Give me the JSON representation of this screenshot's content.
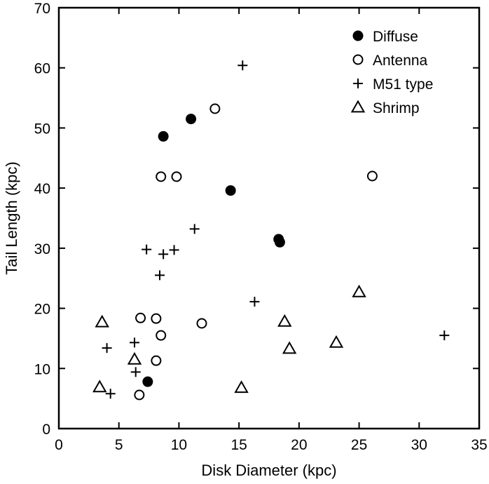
{
  "chart_data": {
    "type": "scatter",
    "xlabel": "Disk Diameter (kpc)",
    "ylabel": "Tail Length (kpc)",
    "xlim": [
      0,
      35
    ],
    "ylim": [
      0,
      70
    ],
    "xticks": [
      0,
      5,
      10,
      15,
      20,
      25,
      30,
      35
    ],
    "yticks": [
      0,
      10,
      20,
      30,
      40,
      50,
      60,
      70
    ],
    "grid": false,
    "legend_position": "top-right",
    "series": [
      {
        "name": "Diffuse",
        "marker": "filled-circle",
        "points": [
          [
            8.7,
            48.6
          ],
          [
            11.0,
            51.5
          ],
          [
            14.3,
            39.6
          ],
          [
            18.3,
            31.5
          ],
          [
            18.4,
            31.0
          ],
          [
            7.4,
            7.8
          ]
        ]
      },
      {
        "name": "Antenna",
        "marker": "open-circle",
        "points": [
          [
            13.0,
            53.2
          ],
          [
            8.5,
            41.9
          ],
          [
            9.8,
            41.9
          ],
          [
            26.1,
            42.0
          ],
          [
            6.8,
            18.4
          ],
          [
            8.1,
            18.3
          ],
          [
            11.9,
            17.5
          ],
          [
            8.5,
            15.5
          ],
          [
            8.1,
            11.3
          ],
          [
            6.7,
            5.6
          ]
        ]
      },
      {
        "name": "M51 type",
        "marker": "plus",
        "points": [
          [
            15.3,
            60.4
          ],
          [
            11.3,
            33.2
          ],
          [
            7.3,
            29.8
          ],
          [
            8.7,
            29.0
          ],
          [
            9.6,
            29.7
          ],
          [
            8.4,
            25.5
          ],
          [
            16.3,
            21.1
          ],
          [
            32.1,
            15.5
          ],
          [
            4.0,
            13.4
          ],
          [
            6.3,
            14.3
          ],
          [
            6.4,
            9.4
          ],
          [
            4.3,
            5.8
          ]
        ]
      },
      {
        "name": "Shrimp",
        "marker": "open-triangle",
        "points": [
          [
            3.6,
            17.7
          ],
          [
            25.0,
            22.7
          ],
          [
            18.8,
            17.8
          ],
          [
            19.2,
            13.3
          ],
          [
            23.1,
            14.3
          ],
          [
            6.3,
            11.5
          ],
          [
            15.2,
            6.8
          ],
          [
            3.4,
            6.9
          ]
        ]
      }
    ]
  }
}
